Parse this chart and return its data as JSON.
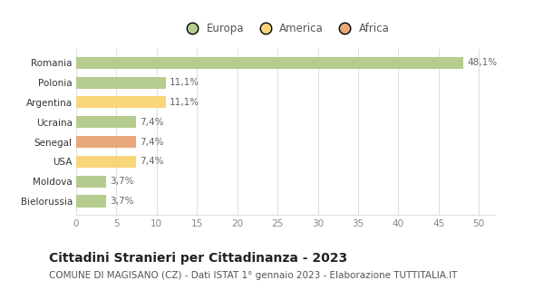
{
  "categories": [
    "Bielorussia",
    "Moldova",
    "USA",
    "Senegal",
    "Ucraina",
    "Argentina",
    "Polonia",
    "Romania"
  ],
  "values": [
    3.7,
    3.7,
    7.4,
    7.4,
    7.4,
    11.1,
    11.1,
    48.1
  ],
  "labels": [
    "3,7%",
    "3,7%",
    "7,4%",
    "7,4%",
    "7,4%",
    "11,1%",
    "11,1%",
    "48,1%"
  ],
  "colors": [
    "#b5cc8e",
    "#b5cc8e",
    "#f9d57a",
    "#e8a87c",
    "#b5cc8e",
    "#f9d57a",
    "#b5cc8e",
    "#b5cc8e"
  ],
  "legend": {
    "Europa": "#b5cc8e",
    "America": "#f9d57a",
    "Africa": "#e8a87c"
  },
  "title": "Cittadini Stranieri per Cittadinanza - 2023",
  "subtitle": "COMUNE DI MAGISANO (CZ) - Dati ISTAT 1° gennaio 2023 - Elaborazione TUTTITALIA.IT",
  "xlim": [
    0,
    52
  ],
  "xticks": [
    0,
    5,
    10,
    15,
    20,
    25,
    30,
    35,
    40,
    45,
    50
  ],
  "background_color": "#ffffff",
  "grid_color": "#e0e0e0",
  "bar_height": 0.6,
  "title_fontsize": 10,
  "subtitle_fontsize": 7.5,
  "label_fontsize": 7.5,
  "tick_fontsize": 7.5,
  "legend_fontsize": 8.5
}
